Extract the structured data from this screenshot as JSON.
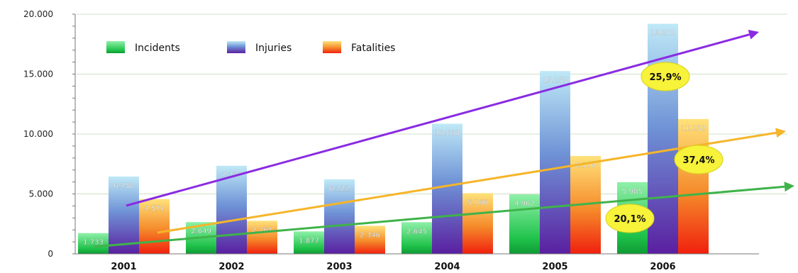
{
  "chart_data": {
    "type": "bar",
    "categories": [
      "2001",
      "2002",
      "2003",
      "2004",
      "2005",
      "2006"
    ],
    "series": [
      {
        "name": "Incidents",
        "values": [
          1733,
          2649,
          1877,
          2645,
          4962,
          5985
        ],
        "labels": [
          "1.733",
          "2.649",
          "1.877",
          "2.645",
          "4.962",
          "5.985"
        ]
      },
      {
        "name": "Injuries",
        "values": [
          6458,
          7357,
          6222,
          10860,
          15255,
          19201
        ],
        "labels": [
          "6.458",
          "7.357",
          "6.222",
          "10.860",
          "15.255",
          "19.201"
        ]
      },
      {
        "name": "Fatalities",
        "values": [
          4571,
          2764,
          2346,
          5066,
          8170,
          11252
        ],
        "labels": [
          "4.571",
          "2.764",
          "2.346",
          "5.066",
          "8.170",
          "11.252"
        ]
      }
    ],
    "ylim": [
      0,
      20000
    ],
    "yticks": [
      0,
      5000,
      10000,
      15000,
      20000
    ],
    "ytick_labels": [
      "0",
      "5.000",
      "10.000",
      "15.000",
      "20.000"
    ],
    "grid": "horizontal",
    "legend_position": "top-left",
    "colors": {
      "incidents_top": "#8ff0a8",
      "incidents_bottom": "#1fc24a",
      "injuries_top": "#bfe9f7",
      "injuries_bottom": "#5a1fa0",
      "fatalities_top": "#ffe27a",
      "fatalities_bottom": "#f0200e",
      "trend_injuries": "#8a2be2",
      "trend_fatalities": "#f5b52a",
      "trend_incidents": "#3fb34a",
      "badge": "#f7f23a"
    },
    "trends": [
      {
        "series": "Injuries",
        "label": "25,9%"
      },
      {
        "series": "Fatalities",
        "label": "37,4%"
      },
      {
        "series": "Incidents",
        "label": "20,1%"
      }
    ]
  }
}
